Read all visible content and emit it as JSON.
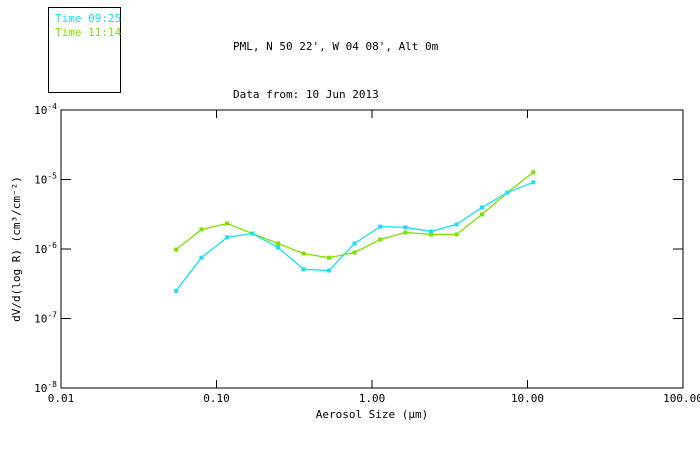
{
  "header": {
    "line1": "PML, N 50 22', W 04 08', Alt 0m",
    "line2": "Data from: 10 Jun 2013"
  },
  "legend": {
    "items": [
      {
        "label": "Time 09:25",
        "color": "#18E0F0"
      },
      {
        "label": "Time 11:14",
        "color": "#7FE000"
      }
    ]
  },
  "colors": {
    "axis": "#000000",
    "background": "#ffffff",
    "series_0925": "#18E0F0",
    "series_1114": "#7FE000"
  },
  "chart_data": {
    "type": "line",
    "x_scale": "log",
    "y_scale": "log",
    "grid": false,
    "legend_position": "top-left-outside",
    "xlabel": "Aerosol Size (µm)",
    "ylabel": "dV/d(log R) (cm³/cm⁻²)",
    "xlim": [
      0.01,
      100
    ],
    "ylim": [
      1e-08,
      0.0001
    ],
    "x_ticks": [
      "0.01",
      "0.10",
      "1.00",
      "10.00",
      "100.00"
    ],
    "x_tick_values": [
      0.01,
      0.1,
      1,
      10,
      100
    ],
    "y_tick_base": "10",
    "y_tick_exponents": [
      "-4",
      "-5",
      "-6",
      "-7",
      "-8"
    ],
    "y_tick_values": [
      0.0001,
      1e-05,
      1e-06,
      1e-07,
      1e-08
    ],
    "x": [
      0.055,
      0.08,
      0.117,
      0.17,
      0.249,
      0.363,
      0.529,
      0.772,
      1.13,
      1.64,
      2.4,
      3.5,
      5.1,
      7.44,
      10.9
    ],
    "series": [
      {
        "name": "Time 09:25",
        "color": "#18E0F0",
        "values": [
          2.5e-07,
          7.5e-07,
          1.47e-06,
          1.67e-06,
          1.05e-06,
          5.1e-07,
          4.9e-07,
          1.2e-06,
          2.1e-06,
          2.05e-06,
          1.79e-06,
          2.26e-06,
          3.97e-06,
          6.5e-06,
          9.1e-06
        ]
      },
      {
        "name": "Time 11:14",
        "color": "#7FE000",
        "values": [
          9.8e-07,
          1.91e-06,
          2.33e-06,
          1.67e-06,
          1.2e-06,
          8.6e-07,
          7.5e-07,
          8.9e-07,
          1.37e-06,
          1.73e-06,
          1.62e-06,
          1.62e-06,
          3.15e-06,
          6.5e-06,
          1.27e-05
        ]
      }
    ]
  }
}
